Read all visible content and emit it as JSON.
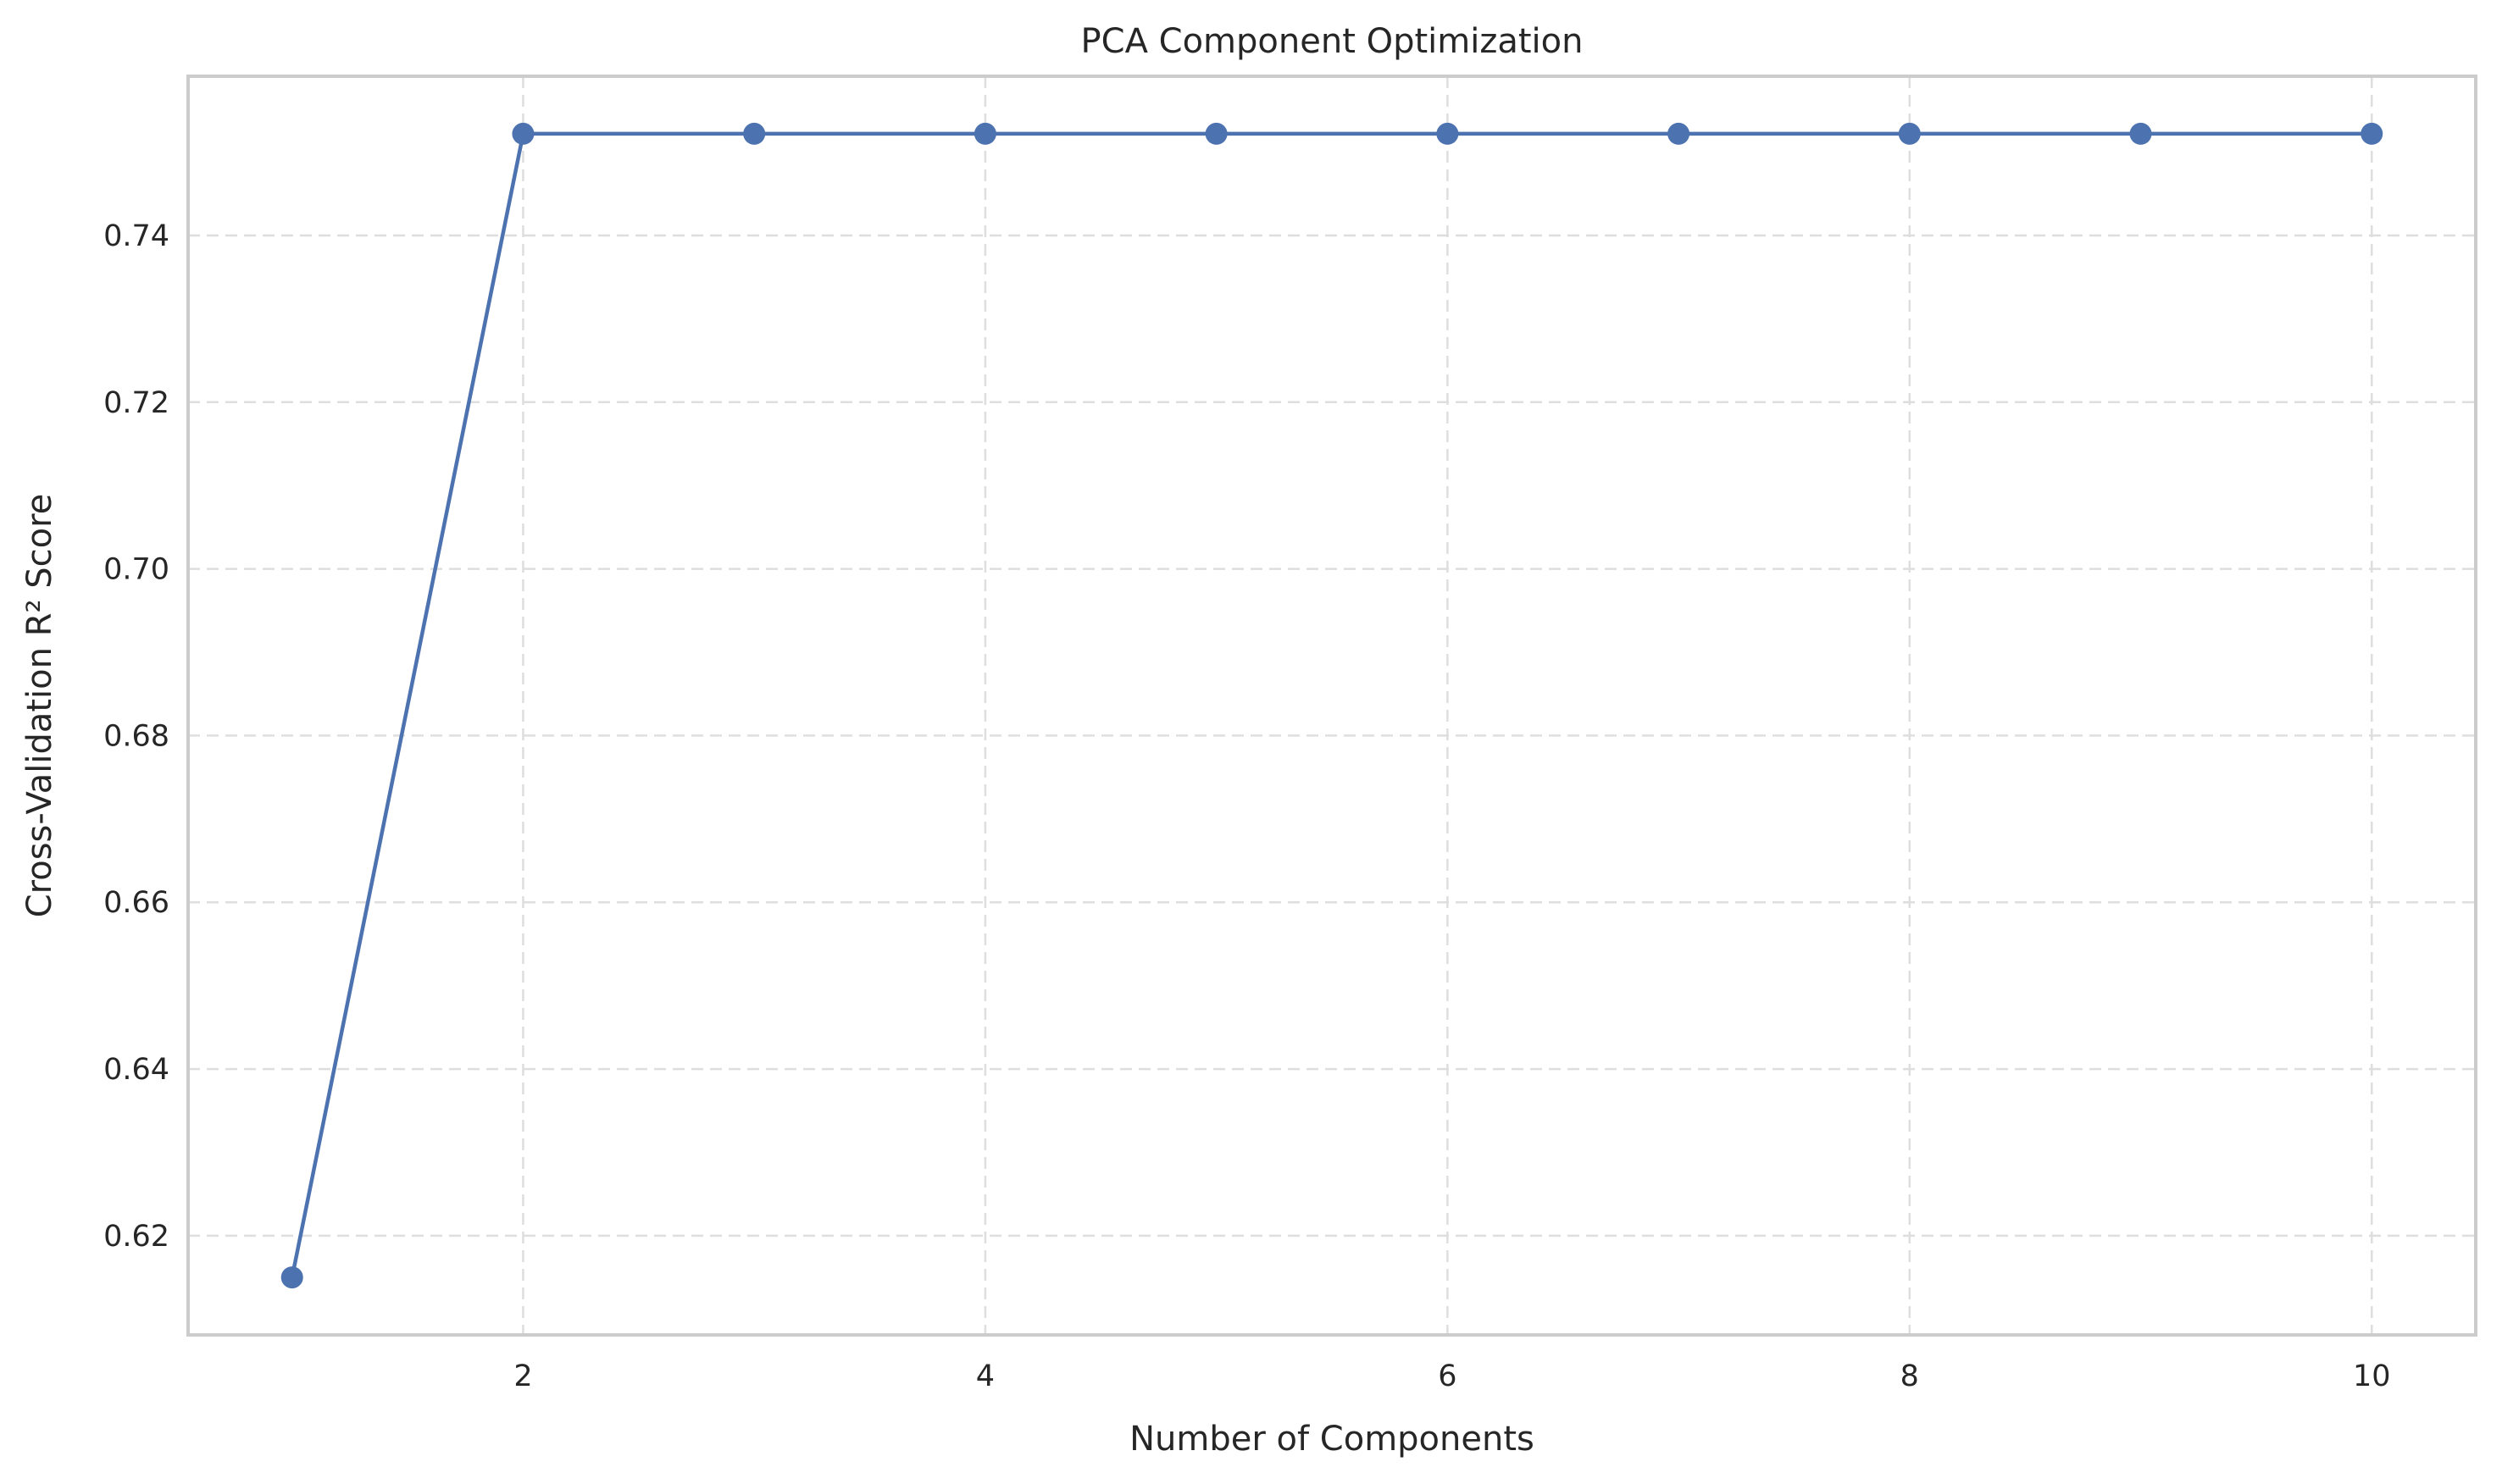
{
  "chart_data": {
    "type": "line",
    "title": "PCA Component Optimization",
    "xlabel": "Number of Components",
    "ylabel": "Cross-Validation R² Score",
    "x": [
      1,
      2,
      3,
      4,
      5,
      6,
      7,
      8,
      9,
      10
    ],
    "series": [
      {
        "values": [
          0.615,
          0.7522,
          0.7522,
          0.7522,
          0.7522,
          0.7522,
          0.7522,
          0.7522,
          0.7522,
          0.7522
        ],
        "color": "#4c72b0",
        "marker": "circle"
      }
    ],
    "xlim": [
      0.55,
      10.45
    ],
    "ylim": [
      0.6081,
      0.7591
    ],
    "xticks": [
      2,
      4,
      6,
      8,
      10
    ],
    "xtick_labels": [
      "2",
      "4",
      "6",
      "8",
      "10"
    ],
    "yticks": [
      0.62,
      0.64,
      0.66,
      0.68,
      0.7,
      0.72,
      0.74
    ],
    "ytick_labels": [
      "0.62",
      "0.64",
      "0.66",
      "0.68",
      "0.70",
      "0.72",
      "0.74"
    ],
    "grid": true,
    "grid_style": "dashed"
  }
}
